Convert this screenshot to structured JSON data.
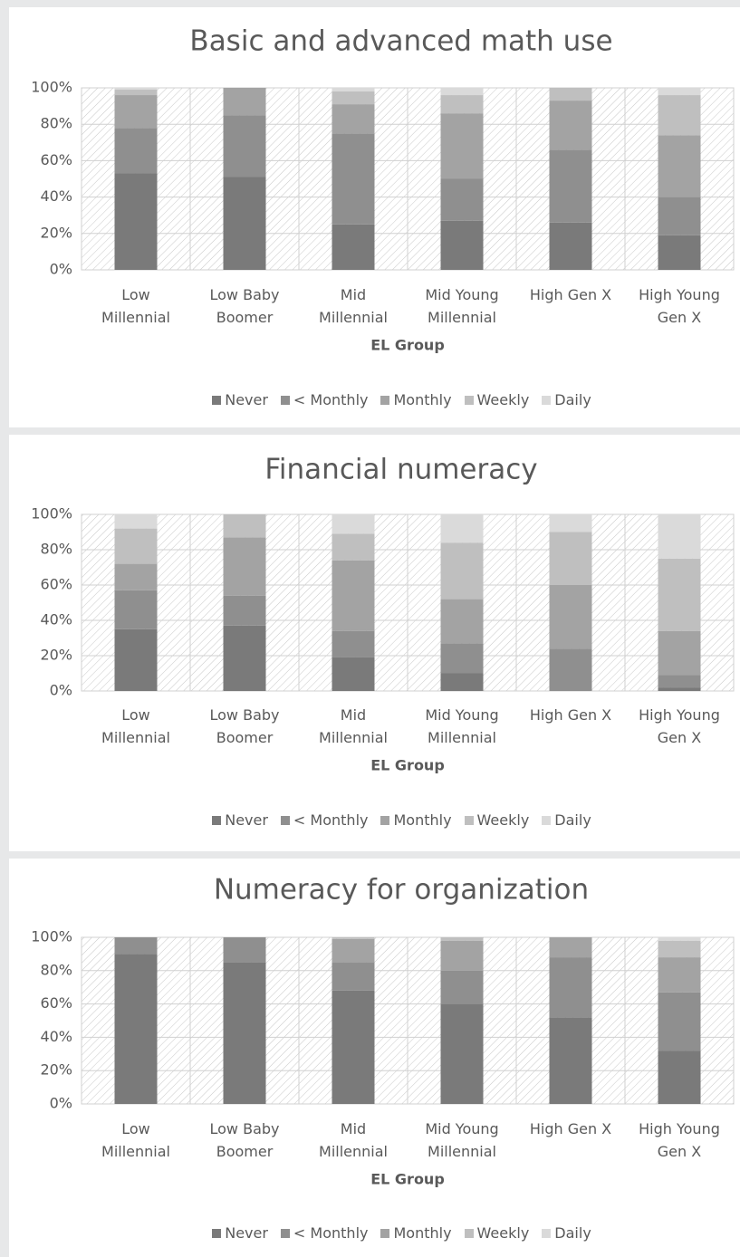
{
  "chart_data": [
    {
      "type": "bar",
      "stacked": true,
      "title": "Basic and advanced math use",
      "x_label": "EL Group",
      "categories": [
        "Low Millennial",
        "Low Baby Boomer",
        "Mid Millennial",
        "Mid Young Millennial",
        "High Gen X",
        "High Young Gen X"
      ],
      "series": [
        {
          "name": "Never",
          "color": "#7a7a7a",
          "values": [
            53,
            51,
            25,
            27,
            26,
            19
          ]
        },
        {
          "name": "< Monthly",
          "color": "#8f8f8f",
          "values": [
            25,
            34,
            50,
            23,
            40,
            21
          ]
        },
        {
          "name": "Monthly",
          "color": "#a3a3a3",
          "values": [
            18,
            15,
            16,
            36,
            27,
            34
          ]
        },
        {
          "name": "Weekly",
          "color": "#bfbfbf",
          "values": [
            3,
            0,
            7,
            10,
            7,
            22
          ]
        },
        {
          "name": "Daily",
          "color": "#dadada",
          "values": [
            1,
            0,
            2,
            4,
            0,
            4
          ]
        }
      ],
      "ylim": [
        0,
        100
      ],
      "yticks": [
        {
          "value": 0,
          "label": "0%"
        },
        {
          "value": 20,
          "label": "20%"
        },
        {
          "value": 40,
          "label": "40%"
        },
        {
          "value": 60,
          "label": "60%"
        },
        {
          "value": 80,
          "label": "80%"
        },
        {
          "value": 100,
          "label": "100%"
        }
      ],
      "grid": true,
      "legend": "bottom"
    },
    {
      "type": "bar",
      "stacked": true,
      "title": "Financial numeracy",
      "x_label": "EL Group",
      "categories": [
        "Low Millennial",
        "Low Baby Boomer",
        "Mid Millennial",
        "Mid Young Millennial",
        "High Gen X",
        "High Young Gen X"
      ],
      "series": [
        {
          "name": "Never",
          "color": "#7a7a7a",
          "values": [
            35,
            37,
            19,
            10,
            0,
            2
          ]
        },
        {
          "name": "< Monthly",
          "color": "#8f8f8f",
          "values": [
            22,
            17,
            15,
            17,
            24,
            7
          ]
        },
        {
          "name": "Monthly",
          "color": "#a3a3a3",
          "values": [
            15,
            33,
            40,
            25,
            36,
            25
          ]
        },
        {
          "name": "Weekly",
          "color": "#bfbfbf",
          "values": [
            20,
            13,
            15,
            32,
            30,
            41
          ]
        },
        {
          "name": "Daily",
          "color": "#dadada",
          "values": [
            8,
            0,
            11,
            16,
            10,
            25
          ]
        }
      ],
      "ylim": [
        0,
        100
      ],
      "yticks": [
        {
          "value": 0,
          "label": "0%"
        },
        {
          "value": 20,
          "label": "20%"
        },
        {
          "value": 40,
          "label": "40%"
        },
        {
          "value": 60,
          "label": "60%"
        },
        {
          "value": 80,
          "label": "80%"
        },
        {
          "value": 100,
          "label": "100%"
        }
      ],
      "grid": true,
      "legend": "bottom"
    },
    {
      "type": "bar",
      "stacked": true,
      "title": "Numeracy for organization",
      "x_label": "EL Group",
      "categories": [
        "Low Millennial",
        "Low Baby Boomer",
        "Mid Millennial",
        "Mid Young Millennial",
        "High Gen X",
        "High Young Gen X"
      ],
      "series": [
        {
          "name": "Never",
          "color": "#7a7a7a",
          "values": [
            90,
            85,
            68,
            60,
            52,
            32
          ]
        },
        {
          "name": "< Monthly",
          "color": "#8f8f8f",
          "values": [
            10,
            15,
            17,
            20,
            36,
            35
          ]
        },
        {
          "name": "Monthly",
          "color": "#a3a3a3",
          "values": [
            0,
            0,
            14,
            18,
            12,
            21
          ]
        },
        {
          "name": "Weekly",
          "color": "#bfbfbf",
          "values": [
            0,
            0,
            1,
            2,
            0,
            10
          ]
        },
        {
          "name": "Daily",
          "color": "#dadada",
          "values": [
            0,
            0,
            0,
            0,
            0,
            2
          ]
        }
      ],
      "ylim": [
        0,
        100
      ],
      "yticks": [
        {
          "value": 0,
          "label": "0%"
        },
        {
          "value": 20,
          "label": "20%"
        },
        {
          "value": 40,
          "label": "40%"
        },
        {
          "value": 60,
          "label": "60%"
        },
        {
          "value": 80,
          "label": "80%"
        },
        {
          "value": 100,
          "label": "100%"
        }
      ],
      "grid": true,
      "legend": "bottom"
    }
  ]
}
